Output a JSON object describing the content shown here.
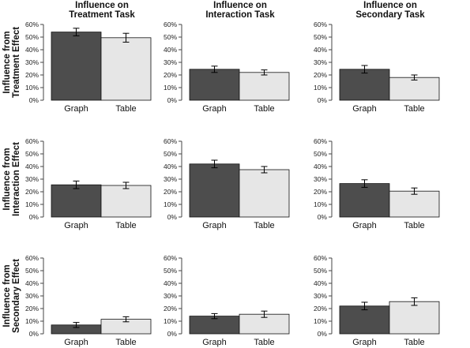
{
  "colors": {
    "graph_bar": "#4d4d4d",
    "table_bar": "#e6e6e6"
  },
  "column_titles": [
    [
      "Influence on",
      "Treatment Task"
    ],
    [
      "Influence on",
      "Interaction Task"
    ],
    [
      "Influence on",
      "Secondary Task"
    ]
  ],
  "row_titles": [
    [
      "Influence from",
      "Treatment Effect"
    ],
    [
      "Influence from",
      "Interaction Effect"
    ],
    [
      "Influence from",
      "Secondary Effect"
    ]
  ],
  "chart_data": [
    {
      "type": "bar",
      "row": 0,
      "col": 0,
      "categories": [
        "Graph",
        "Table"
      ],
      "values": [
        54,
        49.5
      ],
      "error": [
        3,
        3.5
      ],
      "ylim": [
        0,
        60
      ],
      "yticks": [
        "0%",
        "10%",
        "20%",
        "30%",
        "40%",
        "50%",
        "60%"
      ]
    },
    {
      "type": "bar",
      "row": 0,
      "col": 1,
      "categories": [
        "Graph",
        "Table"
      ],
      "values": [
        24.5,
        22
      ],
      "error": [
        2.5,
        2
      ],
      "ylim": [
        0,
        60
      ],
      "yticks": [
        "0%",
        "10%",
        "20%",
        "30%",
        "40%",
        "50%",
        "60%"
      ]
    },
    {
      "type": "bar",
      "row": 0,
      "col": 2,
      "categories": [
        "Graph",
        "Table"
      ],
      "values": [
        24.5,
        18
      ],
      "error": [
        3,
        2
      ],
      "ylim": [
        0,
        60
      ],
      "yticks": [
        "0%",
        "10%",
        "20%",
        "30%",
        "40%",
        "50%",
        "60%"
      ]
    },
    {
      "type": "bar",
      "row": 1,
      "col": 0,
      "categories": [
        "Graph",
        "Table"
      ],
      "values": [
        25.5,
        25
      ],
      "error": [
        3,
        2.5
      ],
      "ylim": [
        0,
        60
      ],
      "yticks": [
        "0%",
        "10%",
        "20%",
        "30%",
        "40%",
        "50%",
        "60%"
      ]
    },
    {
      "type": "bar",
      "row": 1,
      "col": 1,
      "categories": [
        "Graph",
        "Table"
      ],
      "values": [
        42,
        37.5
      ],
      "error": [
        3,
        2.5
      ],
      "ylim": [
        0,
        60
      ],
      "yticks": [
        "0%",
        "10%",
        "20%",
        "30%",
        "40%",
        "50%",
        "60%"
      ]
    },
    {
      "type": "bar",
      "row": 1,
      "col": 2,
      "categories": [
        "Graph",
        "Table"
      ],
      "values": [
        26.5,
        20.5
      ],
      "error": [
        3,
        2.5
      ],
      "ylim": [
        0,
        60
      ],
      "yticks": [
        "0%",
        "10%",
        "20%",
        "30%",
        "40%",
        "50%",
        "60%"
      ]
    },
    {
      "type": "bar",
      "row": 2,
      "col": 0,
      "categories": [
        "Graph",
        "Table"
      ],
      "values": [
        7,
        11.5
      ],
      "error": [
        2,
        2
      ],
      "ylim": [
        0,
        60
      ],
      "yticks": [
        "0%",
        "10%",
        "20%",
        "30%",
        "40%",
        "50%",
        "60%"
      ]
    },
    {
      "type": "bar",
      "row": 2,
      "col": 1,
      "categories": [
        "Graph",
        "Table"
      ],
      "values": [
        14,
        15.5
      ],
      "error": [
        2,
        2.5
      ],
      "ylim": [
        0,
        60
      ],
      "yticks": [
        "0%",
        "10%",
        "20%",
        "30%",
        "40%",
        "50%",
        "60%"
      ]
    },
    {
      "type": "bar",
      "row": 2,
      "col": 2,
      "categories": [
        "Graph",
        "Table"
      ],
      "values": [
        22,
        25.5
      ],
      "error": [
        3,
        3
      ],
      "ylim": [
        0,
        60
      ],
      "yticks": [
        "0%",
        "10%",
        "20%",
        "30%",
        "40%",
        "50%",
        "60%"
      ]
    }
  ]
}
